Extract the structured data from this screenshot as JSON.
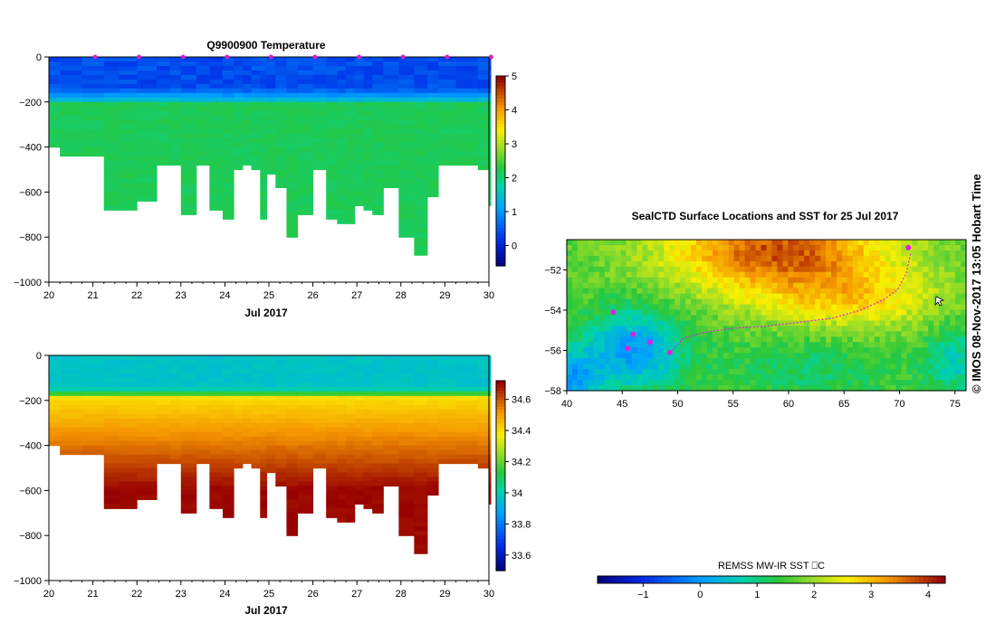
{
  "chart_data": [
    {
      "type": "heatmap",
      "title": "Q9900900  Temperature",
      "xlabel": "Jul 2017",
      "ylabel": "",
      "xlim": [
        20,
        30
      ],
      "ylim": [
        -1000,
        0
      ],
      "x_ticks": [
        "20",
        "21",
        "22",
        "23",
        "24",
        "25",
        "26",
        "27",
        "28",
        "29",
        "30"
      ],
      "y_ticks": [
        "0",
        "−200",
        "−400",
        "−600",
        "−800",
        "−1000"
      ],
      "colorbar": {
        "min": -0.6,
        "max": 5,
        "ticks": [
          "0",
          "1",
          "2",
          "3",
          "4",
          "5"
        ]
      },
      "profile_days": [
        20.0,
        20.25,
        20.75,
        21.25,
        21.6,
        22.0,
        22.45,
        22.75,
        23.0,
        23.35,
        23.65,
        23.95,
        24.2,
        24.4,
        24.6,
        24.8,
        24.95,
        25.15,
        25.4,
        25.65,
        26.0,
        26.3,
        26.55,
        26.75,
        26.95,
        27.15,
        27.35,
        27.6,
        27.95,
        28.3,
        28.6,
        28.85,
        29.25,
        29.75,
        30.0
      ],
      "profile_bottom_depth_m": [
        400,
        430,
        430,
        680,
        680,
        630,
        480,
        480,
        700,
        480,
        680,
        720,
        500,
        470,
        500,
        720,
        510,
        570,
        800,
        700,
        500,
        710,
        730,
        730,
        650,
        670,
        700,
        570,
        800,
        880,
        620,
        470,
        470,
        490,
        650
      ],
      "surface_layer_temp": 0.3,
      "thermocline_depth_m": 200,
      "deep_temp": 2.2,
      "markers_days": [
        21,
        22,
        23,
        24,
        25,
        26,
        27,
        28,
        29,
        30
      ]
    },
    {
      "type": "heatmap",
      "title": "",
      "xlabel": "Jul 2017",
      "ylabel": "",
      "xlim": [
        20,
        30
      ],
      "ylim": [
        -1000,
        0
      ],
      "x_ticks": [
        "20",
        "21",
        "22",
        "23",
        "24",
        "25",
        "26",
        "27",
        "28",
        "29",
        "30"
      ],
      "y_ticks": [
        "0",
        "−200",
        "−400",
        "−600",
        "−800",
        "−1000"
      ],
      "colorbar": {
        "min": 33.5,
        "max": 34.72,
        "ticks": [
          "33.6",
          "33.8",
          "34",
          "34.2",
          "34.4",
          "34.6"
        ]
      },
      "profile_days": [
        20.0,
        20.25,
        20.75,
        21.25,
        21.6,
        22.0,
        22.45,
        22.75,
        23.0,
        23.35,
        23.65,
        23.95,
        24.2,
        24.4,
        24.6,
        24.8,
        24.95,
        25.15,
        25.4,
        25.65,
        26.0,
        26.3,
        26.55,
        26.75,
        26.95,
        27.15,
        27.35,
        27.6,
        27.95,
        28.3,
        28.6,
        28.85,
        29.25,
        29.75,
        30.0
      ],
      "profile_bottom_depth_m": [
        400,
        430,
        430,
        680,
        680,
        630,
        480,
        480,
        700,
        480,
        680,
        720,
        500,
        470,
        500,
        720,
        510,
        570,
        800,
        700,
        500,
        710,
        730,
        730,
        650,
        670,
        700,
        570,
        800,
        880,
        620,
        470,
        470,
        490,
        650
      ],
      "surface_layer_salinity": 33.95,
      "halocline_depth_m": 180,
      "deep_salinity": 34.7
    },
    {
      "type": "heatmap",
      "title": "SealCTD Surface Locations and SST for 25 Jul 2017",
      "xlabel": "",
      "ylabel": "",
      "xlim": [
        40,
        76
      ],
      "ylim": [
        -58,
        -50.5
      ],
      "x_ticks": [
        "40",
        "45",
        "50",
        "55",
        "60",
        "65",
        "70",
        "75"
      ],
      "y_ticks": [
        "−52",
        "−54",
        "−56",
        "−58"
      ],
      "colorbar": {
        "label": "REMSS MW-IR SST ⎕C",
        "min": -1.8,
        "max": 4.3,
        "ticks": [
          "−1",
          "0",
          "1",
          "2",
          "3",
          "4"
        ]
      },
      "track": {
        "lon": [
          71.0,
          70.6,
          69.8,
          68.5,
          66.5,
          64.0,
          61.0,
          58.0,
          55.0,
          52.5,
          50.5,
          49.5
        ],
        "lat": [
          -51.2,
          -52.2,
          -53.0,
          -53.5,
          -54.0,
          -54.4,
          -54.6,
          -54.8,
          -54.9,
          -55.1,
          -55.4,
          -56.0
        ]
      },
      "cluster_points": [
        {
          "lon": 49.3,
          "lat": -56.1
        },
        {
          "lon": 47.5,
          "lat": -55.6
        },
        {
          "lon": 46.0,
          "lat": -55.2
        },
        {
          "lon": 44.2,
          "lat": -54.1
        },
        {
          "lon": 45.5,
          "lat": -55.9
        },
        {
          "lon": 70.8,
          "lat": -50.9
        }
      ]
    }
  ],
  "side_caption": "©  IMOS 08-Nov-2017 13:05 Hobart Time"
}
